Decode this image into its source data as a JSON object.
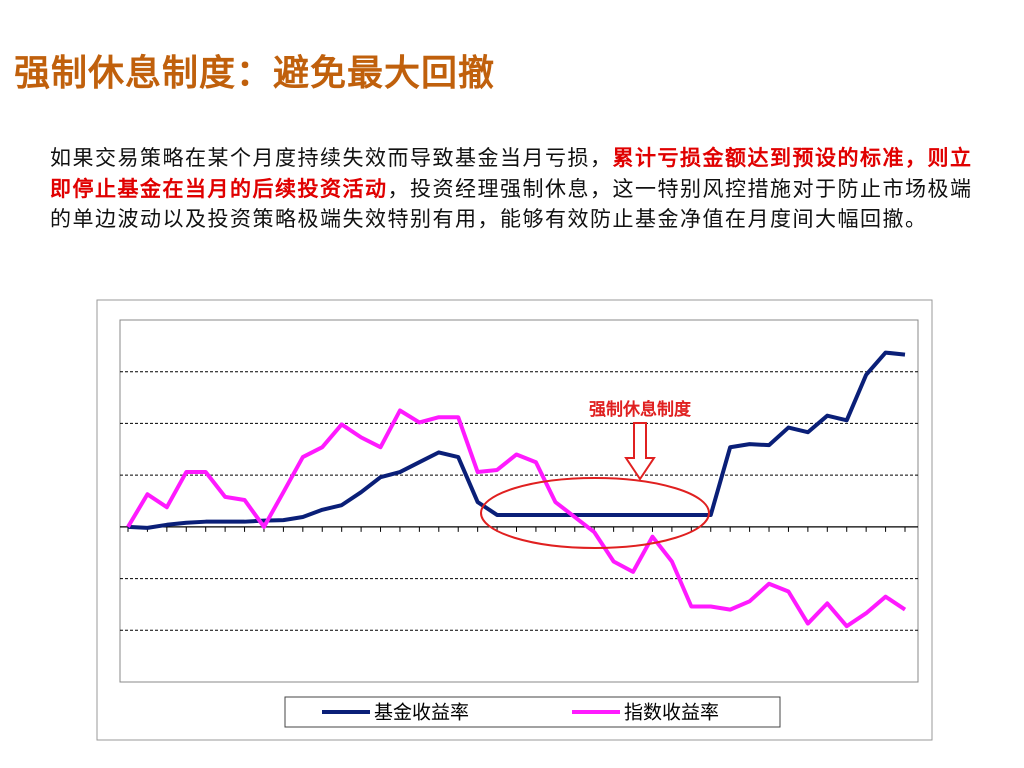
{
  "slide": {
    "title": "强制休息制度：避免最大回撤",
    "paragraph": [
      {
        "text": "如果交易策略在某个月度持续失效而导致基金当月亏损，",
        "emphasis": false
      },
      {
        "text": "累计亏损金额达到预设的标准，则立即停止基金在当月的后续投资活动",
        "emphasis": true
      },
      {
        "text": "，投资经理强制休息，这一特别风控措施对于防止市场极端的单边波动以及投资策略极端失效特别有用，能够有效防止基金净值在月度间大幅回撤。",
        "emphasis": false
      }
    ]
  },
  "chart_data": {
    "type": "line",
    "annotation": "强制休息制度",
    "categories": [
      null,
      null,
      null,
      null,
      null,
      null,
      null,
      null,
      null,
      null,
      null,
      null,
      null,
      null,
      null,
      null,
      null,
      null,
      null,
      null,
      null,
      null,
      null,
      null,
      null,
      null,
      null,
      null,
      null,
      null,
      null,
      null,
      null,
      null,
      null,
      null,
      null,
      null,
      null,
      null,
      null
    ],
    "ylim": [
      -3,
      4
    ],
    "yticks": [
      -2,
      -1,
      0,
      1,
      2,
      3
    ],
    "grid": true,
    "legend": "bottom",
    "series": [
      {
        "name": "基金收益率",
        "color": "#0a1f78",
        "values": [
          0,
          -0.02,
          0.04,
          0.08,
          0.1,
          0.1,
          0.1,
          0.12,
          0.13,
          0.19,
          0.33,
          0.42,
          0.67,
          0.96,
          1.06,
          1.25,
          1.44,
          1.35,
          0.48,
          0.23,
          0.23,
          0.23,
          0.23,
          0.23,
          0.23,
          0.23,
          0.23,
          0.23,
          0.23,
          0.23,
          0.23,
          1.54,
          1.6,
          1.58,
          1.92,
          1.83,
          2.15,
          2.06,
          2.94,
          3.37,
          3.33
        ]
      },
      {
        "name": "指数收益率",
        "color": "#ff1aff",
        "values": [
          0,
          0.63,
          0.38,
          1.06,
          1.06,
          0.58,
          0.52,
          0,
          0.67,
          1.35,
          1.54,
          1.98,
          1.73,
          1.54,
          2.25,
          2.02,
          2.12,
          2.12,
          1.06,
          1.1,
          1.4,
          1.25,
          0.48,
          0.19,
          -0.1,
          -0.67,
          -0.87,
          -0.19,
          -0.67,
          -1.54,
          -1.54,
          -1.6,
          -1.44,
          -1.1,
          -1.25,
          -1.87,
          -1.48,
          -1.92,
          -1.67,
          -1.35,
          -1.6
        ]
      }
    ]
  }
}
